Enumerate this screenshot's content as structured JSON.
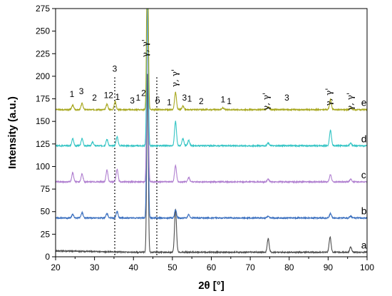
{
  "chart_data": {
    "type": "line",
    "xlabel": "2θ [°]",
    "ylabel": "Intensity (a.u.)",
    "xlim": [
      20,
      100
    ],
    "ylim": [
      0,
      275
    ],
    "xticks": [
      20,
      30,
      40,
      50,
      60,
      70,
      80,
      90,
      100
    ],
    "yticks": [
      0,
      25,
      50,
      75,
      100,
      125,
      150,
      175,
      200,
      225,
      250,
      275
    ],
    "grid": false,
    "reference_lines": [
      {
        "x": 35.2,
        "label": "3",
        "style": "dotted"
      },
      {
        "x": 46.0,
        "label": "δ",
        "style": "dotted"
      }
    ],
    "series": [
      {
        "name": "a",
        "color": "#4d4d4d",
        "baseline": 5,
        "peaks": [
          {
            "x": 43.6,
            "y": 197
          },
          {
            "x": 50.8,
            "y": 48
          },
          {
            "x": 74.6,
            "y": 15
          },
          {
            "x": 90.5,
            "y": 17
          },
          {
            "x": 95.8,
            "y": 6
          }
        ]
      },
      {
        "name": "b",
        "color": "#3a6fbf",
        "baseline": 43,
        "peaks": [
          {
            "x": 24.4,
            "y": 4
          },
          {
            "x": 26.8,
            "y": 6
          },
          {
            "x": 33.2,
            "y": 5
          },
          {
            "x": 35.8,
            "y": 7
          },
          {
            "x": 43.6,
            "y": 250
          },
          {
            "x": 50.8,
            "y": 9
          },
          {
            "x": 54.2,
            "y": 4
          },
          {
            "x": 74.6,
            "y": 2
          },
          {
            "x": 90.6,
            "y": 5
          },
          {
            "x": 95.8,
            "y": 2
          }
        ]
      },
      {
        "name": "c",
        "color": "#b07fd0",
        "baseline": 83,
        "peaks": [
          {
            "x": 24.4,
            "y": 10
          },
          {
            "x": 26.8,
            "y": 9
          },
          {
            "x": 33.2,
            "y": 13
          },
          {
            "x": 35.8,
            "y": 14
          },
          {
            "x": 43.6,
            "y": 220
          },
          {
            "x": 50.8,
            "y": 18
          },
          {
            "x": 54.2,
            "y": 5
          },
          {
            "x": 74.6,
            "y": 3
          },
          {
            "x": 90.6,
            "y": 8
          },
          {
            "x": 95.8,
            "y": 3
          }
        ]
      },
      {
        "name": "d",
        "color": "#33c4c4",
        "baseline": 123,
        "peaks": [
          {
            "x": 24.4,
            "y": 8
          },
          {
            "x": 26.8,
            "y": 8
          },
          {
            "x": 29.5,
            "y": 4
          },
          {
            "x": 33.2,
            "y": 7
          },
          {
            "x": 35.8,
            "y": 10
          },
          {
            "x": 43.6,
            "y": 200
          },
          {
            "x": 50.8,
            "y": 27
          },
          {
            "x": 52.7,
            "y": 8
          },
          {
            "x": 54.2,
            "y": 6
          },
          {
            "x": 74.6,
            "y": 3
          },
          {
            "x": 90.6,
            "y": 17
          },
          {
            "x": 95.8,
            "y": 3
          }
        ]
      },
      {
        "name": "e",
        "color": "#a8a820",
        "baseline": 163,
        "peaks": [
          {
            "x": 24.4,
            "y": 5
          },
          {
            "x": 26.8,
            "y": 7
          },
          {
            "x": 33.2,
            "y": 6
          },
          {
            "x": 35.3,
            "y": 9
          },
          {
            "x": 43.6,
            "y": 217
          },
          {
            "x": 50.8,
            "y": 19
          },
          {
            "x": 52.7,
            "y": 4
          },
          {
            "x": 63.0,
            "y": 2
          },
          {
            "x": 74.6,
            "y": 3
          },
          {
            "x": 90.6,
            "y": 11
          },
          {
            "x": 95.8,
            "y": 2
          }
        ]
      }
    ],
    "annotations": [
      {
        "text": "1",
        "x": 24.2,
        "y": 177
      },
      {
        "text": "3",
        "x": 26.6,
        "y": 180
      },
      {
        "text": "2",
        "x": 30.0,
        "y": 173
      },
      {
        "text": "12",
        "x": 33.6,
        "y": 176
      },
      {
        "text": "1",
        "x": 35.9,
        "y": 174
      },
      {
        "text": "3",
        "x": 35.2,
        "y": 205
      },
      {
        "text": "3",
        "x": 39.7,
        "y": 170
      },
      {
        "text": "1",
        "x": 41.2,
        "y": 173
      },
      {
        "text": "2",
        "x": 42.6,
        "y": 178
      },
      {
        "text": "γ, γ'",
        "x": 43.8,
        "y": 231
      },
      {
        "text": "1",
        "x": 49.2,
        "y": 168
      },
      {
        "text": "δ",
        "x": 46.2,
        "y": 170
      },
      {
        "text": "γ, γ'",
        "x": 51.4,
        "y": 198
      },
      {
        "text": "3",
        "x": 53.1,
        "y": 173
      },
      {
        "text": "1",
        "x": 54.4,
        "y": 172
      },
      {
        "text": "2",
        "x": 57.4,
        "y": 169
      },
      {
        "text": "1",
        "x": 63.0,
        "y": 171
      },
      {
        "text": "1",
        "x": 64.6,
        "y": 169
      },
      {
        "text": "γ, γ'",
        "x": 74.8,
        "y": 172
      },
      {
        "text": "3",
        "x": 79.4,
        "y": 173
      },
      {
        "text": "γ, γ'",
        "x": 90.9,
        "y": 177
      },
      {
        "text": "γ, γ'",
        "x": 96.4,
        "y": 172
      }
    ]
  }
}
